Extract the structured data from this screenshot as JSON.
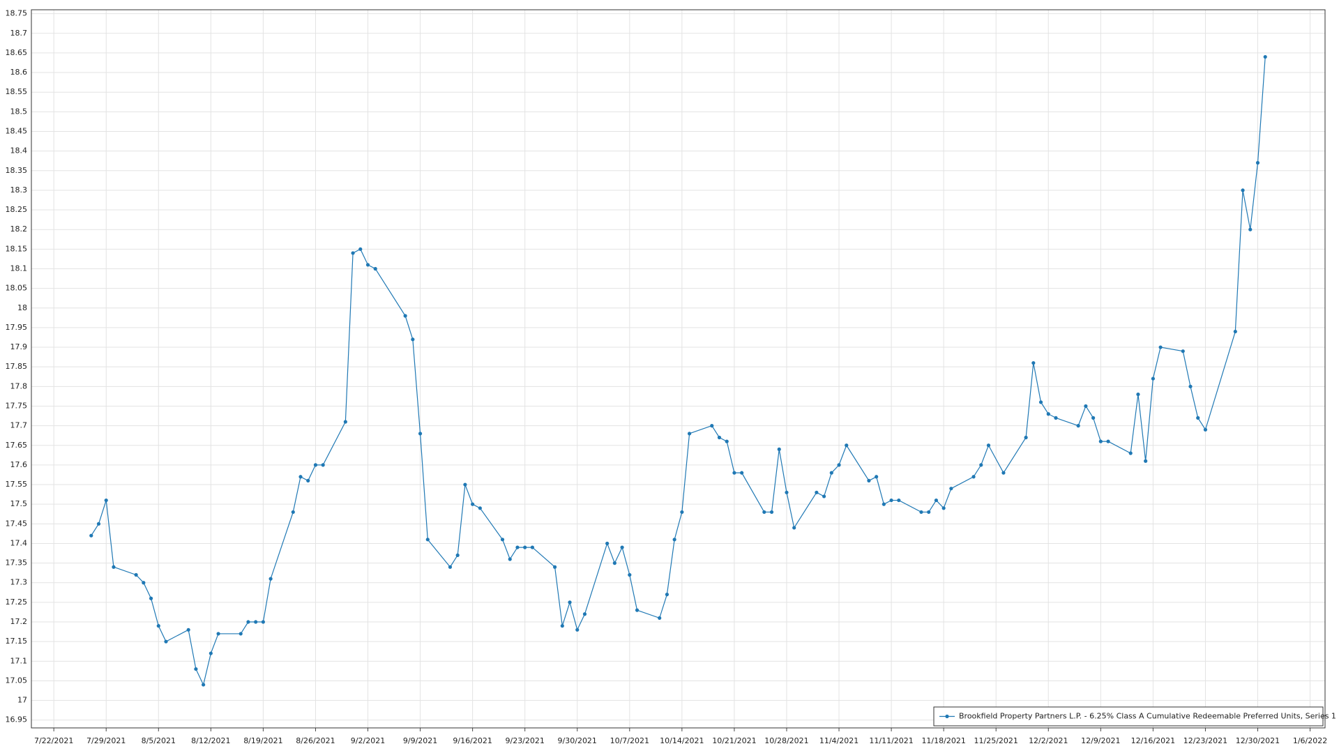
{
  "chart_data": {
    "type": "line",
    "x": [
      "2021-07-27",
      "2021-07-28",
      "2021-07-29",
      "2021-07-30",
      "2021-08-02",
      "2021-08-03",
      "2021-08-04",
      "2021-08-05",
      "2021-08-06",
      "2021-08-09",
      "2021-08-10",
      "2021-08-11",
      "2021-08-12",
      "2021-08-13",
      "2021-08-16",
      "2021-08-17",
      "2021-08-18",
      "2021-08-19",
      "2021-08-20",
      "2021-08-23",
      "2021-08-24",
      "2021-08-25",
      "2021-08-26",
      "2021-08-27",
      "2021-08-30",
      "2021-08-31",
      "2021-09-01",
      "2021-09-02",
      "2021-09-03",
      "2021-09-07",
      "2021-09-08",
      "2021-09-09",
      "2021-09-10",
      "2021-09-13",
      "2021-09-14",
      "2021-09-15",
      "2021-09-16",
      "2021-09-17",
      "2021-09-20",
      "2021-09-21",
      "2021-09-22",
      "2021-09-23",
      "2021-09-24",
      "2021-09-27",
      "2021-09-28",
      "2021-09-29",
      "2021-09-30",
      "2021-10-01",
      "2021-10-04",
      "2021-10-05",
      "2021-10-06",
      "2021-10-07",
      "2021-10-08",
      "2021-10-11",
      "2021-10-12",
      "2021-10-13",
      "2021-10-14",
      "2021-10-15",
      "2021-10-18",
      "2021-10-19",
      "2021-10-20",
      "2021-10-21",
      "2021-10-22",
      "2021-10-25",
      "2021-10-26",
      "2021-10-27",
      "2021-10-28",
      "2021-10-29",
      "2021-11-01",
      "2021-11-02",
      "2021-11-03",
      "2021-11-04",
      "2021-11-05",
      "2021-11-08",
      "2021-11-09",
      "2021-11-10",
      "2021-11-11",
      "2021-11-12",
      "2021-11-15",
      "2021-11-16",
      "2021-11-17",
      "2021-11-18",
      "2021-11-19",
      "2021-11-22",
      "2021-11-23",
      "2021-11-24",
      "2021-11-26",
      "2021-11-29",
      "2021-11-30",
      "2021-12-01",
      "2021-12-02",
      "2021-12-03",
      "2021-12-06",
      "2021-12-07",
      "2021-12-08",
      "2021-12-09",
      "2021-12-10",
      "2021-12-13",
      "2021-12-14",
      "2021-12-15",
      "2021-12-16",
      "2021-12-17",
      "2021-12-20",
      "2021-12-21",
      "2021-12-22",
      "2021-12-23",
      "2021-12-27",
      "2021-12-28",
      "2021-12-29",
      "2021-12-30",
      "2021-12-31"
    ],
    "series": [
      {
        "name": "Brookfield Property Partners L.P. - 6.25% Class A Cumulative Redeemable Preferred Units, Series 1",
        "color": "#1f78b4",
        "values": [
          17.42,
          17.45,
          17.51,
          17.34,
          17.32,
          17.3,
          17.26,
          17.19,
          17.15,
          17.18,
          17.08,
          17.04,
          17.12,
          17.17,
          17.17,
          17.2,
          17.2,
          17.2,
          17.31,
          17.48,
          17.57,
          17.56,
          17.6,
          17.6,
          17.71,
          18.14,
          18.15,
          18.11,
          18.1,
          17.98,
          17.92,
          17.68,
          17.41,
          17.34,
          17.37,
          17.55,
          17.5,
          17.49,
          17.41,
          17.36,
          17.39,
          17.39,
          17.39,
          17.34,
          17.19,
          17.25,
          17.18,
          17.22,
          17.4,
          17.35,
          17.39,
          17.32,
          17.23,
          17.21,
          17.27,
          17.41,
          17.48,
          17.68,
          17.7,
          17.67,
          17.66,
          17.58,
          17.58,
          17.48,
          17.48,
          17.64,
          17.53,
          17.44,
          17.53,
          17.52,
          17.58,
          17.6,
          17.65,
          17.56,
          17.57,
          17.5,
          17.51,
          17.51,
          17.48,
          17.48,
          17.51,
          17.49,
          17.54,
          17.57,
          17.6,
          17.65,
          17.58,
          17.67,
          17.86,
          17.76,
          17.73,
          17.72,
          17.7,
          17.75,
          17.72,
          17.66,
          17.66,
          17.63,
          17.78,
          17.61,
          17.82,
          17.9,
          17.89,
          17.8,
          17.72,
          17.69,
          17.94,
          18.3,
          18.2,
          18.37,
          18.64
        ]
      }
    ],
    "xlim": [
      "2021-07-19",
      "2022-01-08"
    ],
    "xticks": [
      {
        "value": "2021-07-22",
        "label": "7/22/2021"
      },
      {
        "value": "2021-07-29",
        "label": "7/29/2021"
      },
      {
        "value": "2021-08-05",
        "label": "8/5/2021"
      },
      {
        "value": "2021-08-12",
        "label": "8/12/2021"
      },
      {
        "value": "2021-08-19",
        "label": "8/19/2021"
      },
      {
        "value": "2021-08-26",
        "label": "8/26/2021"
      },
      {
        "value": "2021-09-02",
        "label": "9/2/2021"
      },
      {
        "value": "2021-09-09",
        "label": "9/9/2021"
      },
      {
        "value": "2021-09-16",
        "label": "9/16/2021"
      },
      {
        "value": "2021-09-23",
        "label": "9/23/2021"
      },
      {
        "value": "2021-09-30",
        "label": "9/30/2021"
      },
      {
        "value": "2021-10-07",
        "label": "10/7/2021"
      },
      {
        "value": "2021-10-14",
        "label": "10/14/2021"
      },
      {
        "value": "2021-10-21",
        "label": "10/21/2021"
      },
      {
        "value": "2021-10-28",
        "label": "10/28/2021"
      },
      {
        "value": "2021-11-04",
        "label": "11/4/2021"
      },
      {
        "value": "2021-11-11",
        "label": "11/11/2021"
      },
      {
        "value": "2021-11-18",
        "label": "11/18/2021"
      },
      {
        "value": "2021-11-25",
        "label": "11/25/2021"
      },
      {
        "value": "2021-12-02",
        "label": "12/2/2021"
      },
      {
        "value": "2021-12-09",
        "label": "12/9/2021"
      },
      {
        "value": "2021-12-16",
        "label": "12/16/2021"
      },
      {
        "value": "2021-12-23",
        "label": "12/23/2021"
      },
      {
        "value": "2021-12-30",
        "label": "12/30/2021"
      },
      {
        "value": "2022-01-06",
        "label": "1/6/2022"
      }
    ],
    "ylim": [
      16.93,
      18.76
    ],
    "yticks": [
      16.95,
      17,
      17.05,
      17.1,
      17.15,
      17.2,
      17.25,
      17.3,
      17.35,
      17.4,
      17.45,
      17.5,
      17.55,
      17.6,
      17.65,
      17.7,
      17.75,
      17.8,
      17.85,
      17.9,
      17.95,
      18,
      18.05,
      18.1,
      18.15,
      18.2,
      18.25,
      18.3,
      18.35,
      18.4,
      18.45,
      18.5,
      18.55,
      18.6,
      18.65,
      18.7,
      18.75
    ],
    "grid": true,
    "legend": "lower right",
    "markers": true
  }
}
